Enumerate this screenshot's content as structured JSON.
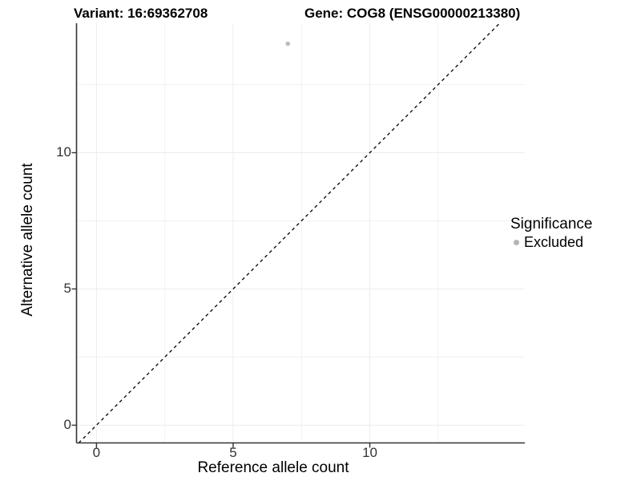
{
  "chart_data": {
    "type": "scatter",
    "title_left": "Variant: 16:69362708",
    "title_right": "Gene: COG8 (ENSG00000213380)",
    "xlabel": "Reference allele count",
    "ylabel": "Alternative allele count",
    "xlim": [
      -0.73,
      15.67
    ],
    "ylim": [
      -0.65,
      14.75
    ],
    "xticks": [
      0,
      5,
      10
    ],
    "yticks": [
      0,
      5,
      10
    ],
    "xticks_minor": [
      2.5,
      7.5,
      12.5
    ],
    "yticks_minor": [
      2.5,
      7.5,
      12.5
    ],
    "grid": true,
    "identity_line": {
      "style": "dashed",
      "equation": "y = x",
      "color": "#000000"
    },
    "series": [
      {
        "name": "Excluded",
        "color": "#bcbcbc",
        "points": [
          {
            "x": 7,
            "y": 14
          }
        ]
      }
    ],
    "legend": {
      "title": "Significance",
      "position": "right",
      "items": [
        {
          "label": "Excluded",
          "color": "#b5b5b5"
        }
      ]
    },
    "styles": {
      "grid_major_color": "#ececec",
      "grid_minor_color": "#f1f1f1",
      "axis_color": "#333333",
      "tick_label_color": "#333333",
      "background": "#ffffff",
      "point_radius": 2.8
    }
  }
}
